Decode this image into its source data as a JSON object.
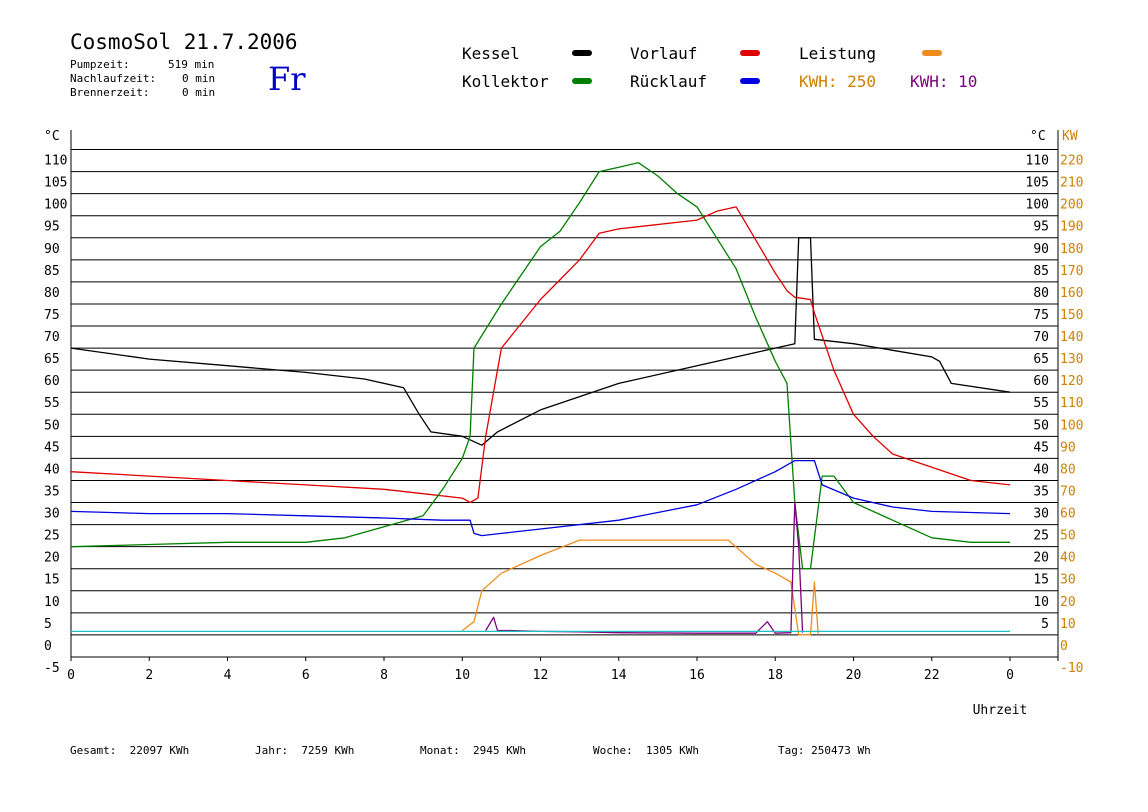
{
  "header": {
    "title": "CosmoSol 21.7.2006",
    "day": "Fr",
    "stats": [
      {
        "label": "Pumpzeit:",
        "value": "519 min"
      },
      {
        "label": "Nachlaufzeit:",
        "value": "0 min"
      },
      {
        "label": "Brennerzeit:",
        "value": "0 min"
      }
    ]
  },
  "legend": {
    "items": [
      {
        "label": "Kessel",
        "color": "#000000"
      },
      {
        "label": "Vorlauf",
        "color": "#e00000"
      },
      {
        "label": "Leistung",
        "color": "#f08c1e"
      },
      {
        "label": "Kollektor",
        "color": "#008000"
      },
      {
        "label": "Rücklauf",
        "color": "#0000e0"
      }
    ],
    "kwh_orange": "KWH: 250",
    "kwh_purple": "KWH: 10",
    "purple_color": "#800080",
    "orange_color": "#d08000"
  },
  "footer": {
    "gesamt": "Gesamt:  22097 KWh",
    "jahr": "Jahr:  7259 KWh",
    "monat": "Monat:  2945 KWh",
    "woche": "Woche:  1305 KWh",
    "tag": "Tag: 250473 Wh"
  },
  "chart_data": {
    "type": "line",
    "xlabel": "Uhrzeit",
    "ylabel_left": "°C",
    "ylabel_right_temp": "°C",
    "ylabel_right_power": "KW",
    "xlim": [
      0,
      24
    ],
    "ylim": [
      -5,
      110
    ],
    "x_ticks": [
      "0",
      "2",
      "4",
      "6",
      "8",
      "10",
      "12",
      "14",
      "16",
      "18",
      "20",
      "22",
      "0"
    ],
    "y_ticks": [
      110,
      105,
      100,
      95,
      90,
      85,
      80,
      75,
      70,
      65,
      60,
      55,
      50,
      45,
      40,
      35,
      30,
      25,
      20,
      15,
      10,
      5,
      0,
      -5
    ],
    "y_ticks_right": [
      110,
      105,
      100,
      95,
      90,
      85,
      80,
      75,
      70,
      65,
      60,
      55,
      50,
      45,
      40,
      35,
      30,
      25,
      20,
      15,
      10,
      5
    ],
    "kw_ticks": [
      220,
      210,
      200,
      190,
      180,
      170,
      160,
      150,
      140,
      130,
      120,
      110,
      100,
      90,
      80,
      70,
      60,
      50,
      40,
      30,
      20,
      10,
      0,
      -10
    ],
    "series": [
      {
        "name": "Kessel",
        "color": "#000000",
        "points": [
          [
            0,
            65
          ],
          [
            2,
            62.5
          ],
          [
            4,
            61
          ],
          [
            6,
            59.5
          ],
          [
            7.5,
            58
          ],
          [
            8.5,
            56
          ],
          [
            8.9,
            50
          ],
          [
            9.2,
            46
          ],
          [
            10,
            45
          ],
          [
            10.5,
            43
          ],
          [
            10.9,
            46
          ],
          [
            12,
            51
          ],
          [
            14,
            57
          ],
          [
            16,
            61
          ],
          [
            17.5,
            64
          ],
          [
            18,
            65
          ],
          [
            18.5,
            66
          ],
          [
            18.6,
            90
          ],
          [
            18.9,
            90
          ],
          [
            19,
            67
          ],
          [
            20,
            66
          ],
          [
            21,
            64.5
          ],
          [
            22,
            63
          ],
          [
            22.2,
            62
          ],
          [
            22.5,
            57
          ],
          [
            24,
            55
          ]
        ]
      },
      {
        "name": "Vorlauf",
        "color": "#e00000",
        "points": [
          [
            0,
            37
          ],
          [
            2,
            36
          ],
          [
            4,
            35
          ],
          [
            6,
            34
          ],
          [
            8,
            33
          ],
          [
            9,
            32
          ],
          [
            10,
            31
          ],
          [
            10.2,
            30
          ],
          [
            10.4,
            31
          ],
          [
            10.6,
            45
          ],
          [
            11,
            65
          ],
          [
            12,
            76
          ],
          [
            13,
            85
          ],
          [
            13.5,
            91
          ],
          [
            14,
            92
          ],
          [
            16,
            94
          ],
          [
            16.5,
            96
          ],
          [
            17,
            97
          ],
          [
            17.2,
            94
          ],
          [
            17.6,
            88
          ],
          [
            18,
            82
          ],
          [
            18.3,
            78
          ],
          [
            18.5,
            76.5
          ],
          [
            18.9,
            76
          ],
          [
            19,
            73
          ],
          [
            19.5,
            60
          ],
          [
            20,
            50
          ],
          [
            20.5,
            45
          ],
          [
            21,
            41
          ],
          [
            22,
            38
          ],
          [
            23,
            35
          ],
          [
            24,
            34
          ]
        ]
      },
      {
        "name": "Kollektor",
        "color": "#008000",
        "points": [
          [
            0,
            20
          ],
          [
            2,
            20.5
          ],
          [
            4,
            21
          ],
          [
            6,
            21
          ],
          [
            7,
            22
          ],
          [
            8,
            24.5
          ],
          [
            9,
            27
          ],
          [
            9.5,
            33
          ],
          [
            10,
            40
          ],
          [
            10.2,
            45
          ],
          [
            10.3,
            65
          ],
          [
            11,
            75
          ],
          [
            12,
            88
          ],
          [
            12.5,
            91.5
          ],
          [
            13,
            98
          ],
          [
            13.5,
            105
          ],
          [
            14,
            106
          ],
          [
            14.5,
            107
          ],
          [
            15,
            104
          ],
          [
            15.5,
            100
          ],
          [
            16,
            97
          ],
          [
            16.5,
            90
          ],
          [
            17,
            83
          ],
          [
            17.5,
            72
          ],
          [
            18,
            62
          ],
          [
            18.3,
            57
          ],
          [
            18.5,
            30
          ],
          [
            18.7,
            15
          ],
          [
            18.9,
            15
          ],
          [
            19.2,
            36
          ],
          [
            19.5,
            36
          ],
          [
            20,
            30
          ],
          [
            21,
            26
          ],
          [
            22,
            22
          ],
          [
            23,
            21
          ],
          [
            24,
            21
          ]
        ]
      },
      {
        "name": "Rücklauf",
        "color": "#0000e0",
        "points": [
          [
            0,
            28
          ],
          [
            2,
            27.5
          ],
          [
            4,
            27.5
          ],
          [
            6,
            27
          ],
          [
            8,
            26.5
          ],
          [
            9.5,
            26
          ],
          [
            10.2,
            26
          ],
          [
            10.3,
            23
          ],
          [
            10.5,
            22.5
          ],
          [
            11,
            23
          ],
          [
            12,
            24
          ],
          [
            14,
            26
          ],
          [
            16,
            29.5
          ],
          [
            17,
            33
          ],
          [
            18,
            37
          ],
          [
            18.5,
            39.5
          ],
          [
            19,
            39.5
          ],
          [
            19.2,
            34
          ],
          [
            20,
            31
          ],
          [
            21,
            29
          ],
          [
            22,
            28
          ],
          [
            24,
            27.5
          ]
        ]
      },
      {
        "name": "Leistung",
        "color": "#f08c1e",
        "points": [
          [
            10,
            1
          ],
          [
            10.3,
            3
          ],
          [
            10.5,
            10
          ],
          [
            11,
            14
          ],
          [
            12,
            18
          ],
          [
            13,
            21.5
          ],
          [
            14,
            21.5
          ],
          [
            16,
            21.5
          ],
          [
            16.8,
            21.5
          ],
          [
            17.5,
            16
          ],
          [
            18,
            14
          ],
          [
            18.4,
            12
          ],
          [
            18.6,
            0
          ],
          [
            18.9,
            0
          ],
          [
            19,
            12
          ],
          [
            19.1,
            0
          ]
        ]
      },
      {
        "name": "",
        "color": "#800080",
        "points": [
          [
            10.6,
            1
          ],
          [
            10.8,
            4
          ],
          [
            10.9,
            1
          ],
          [
            11.2,
            1
          ],
          [
            12,
            0.8
          ],
          [
            13,
            0.7
          ],
          [
            14,
            0.5
          ],
          [
            16,
            0.4
          ],
          [
            17.5,
            0.4
          ],
          [
            17.8,
            3
          ],
          [
            18,
            0.4
          ],
          [
            18.4,
            0.5
          ],
          [
            18.5,
            30
          ],
          [
            18.6,
            20
          ],
          [
            18.7,
            0.5
          ]
        ]
      },
      {
        "name": "",
        "color": "#20c0c0",
        "points": [
          [
            0,
            0.8
          ],
          [
            24,
            0.8
          ]
        ]
      }
    ]
  }
}
